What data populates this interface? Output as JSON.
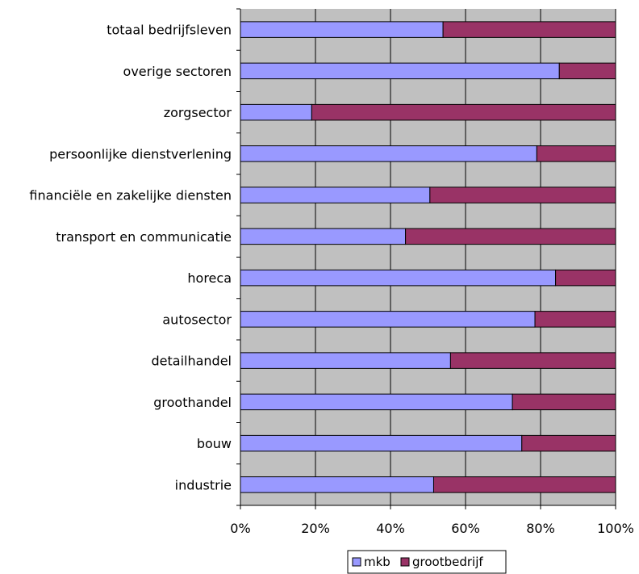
{
  "chart_data": {
    "type": "bar",
    "orientation": "horizontal",
    "stacked": true,
    "percent_stacked": true,
    "categories": [
      "totaal bedrijfsleven",
      "overige sectoren",
      "zorgsector",
      "persoonlijke dienstverlening",
      "financiële en zakelijke diensten",
      "transport en communicatie",
      "horeca",
      "autosector",
      "detailhandel",
      "groothandel",
      "bouw",
      "industrie"
    ],
    "series": [
      {
        "name": "mkb",
        "color": "#9999ff",
        "values": [
          54,
          85,
          19,
          79,
          50.5,
          44,
          84,
          78.5,
          56,
          72.5,
          75,
          51.5
        ]
      },
      {
        "name": "grootbedrijf",
        "color": "#993366",
        "values": [
          46,
          15,
          81,
          21,
          49.5,
          56,
          16,
          21.5,
          44,
          27.5,
          25,
          48.5
        ]
      }
    ],
    "xlim": [
      0,
      100
    ],
    "x_ticks": [
      "0%",
      "20%",
      "40%",
      "60%",
      "80%",
      "100%"
    ],
    "title": "",
    "xlabel": "",
    "ylabel": "",
    "grid": true,
    "plot_background": "#c0c0c0",
    "legend_position": "bottom"
  }
}
